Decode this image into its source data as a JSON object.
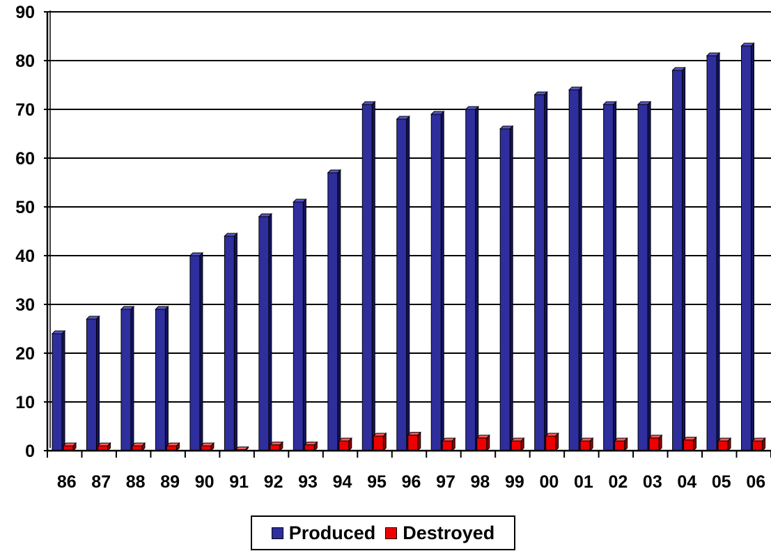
{
  "colors": {
    "produced": "#2e2e9c",
    "produced_side": "#14145e",
    "produced_top": "#5858c8",
    "destroyed": "#ee0000",
    "destroyed_side": "#8a0000",
    "destroyed_top": "#ff5a5a"
  },
  "chart_data": {
    "type": "bar",
    "categories": [
      "86",
      "87",
      "88",
      "89",
      "90",
      "91",
      "92",
      "93",
      "94",
      "95",
      "96",
      "97",
      "98",
      "99",
      "00",
      "01",
      "02",
      "03",
      "04",
      "05",
      "06"
    ],
    "series": [
      {
        "name": "Produced",
        "values": [
          24,
          27,
          29,
          29,
          40,
          44,
          48,
          51,
          57,
          71,
          68,
          69,
          70,
          66,
          73,
          74,
          71,
          71,
          78,
          81,
          83
        ]
      },
      {
        "name": "Destroyed",
        "values": [
          1,
          1,
          1,
          1,
          1,
          0.2,
          1.2,
          1.2,
          2,
          3,
          3.2,
          2,
          2.6,
          2,
          3,
          2,
          2,
          2.6,
          2.2,
          2,
          2
        ]
      }
    ],
    "yticks": [
      0,
      10,
      20,
      30,
      40,
      50,
      60,
      70,
      80,
      90
    ],
    "ylim": [
      0,
      90
    ],
    "grid": true,
    "legend_position": "bottom-center"
  }
}
